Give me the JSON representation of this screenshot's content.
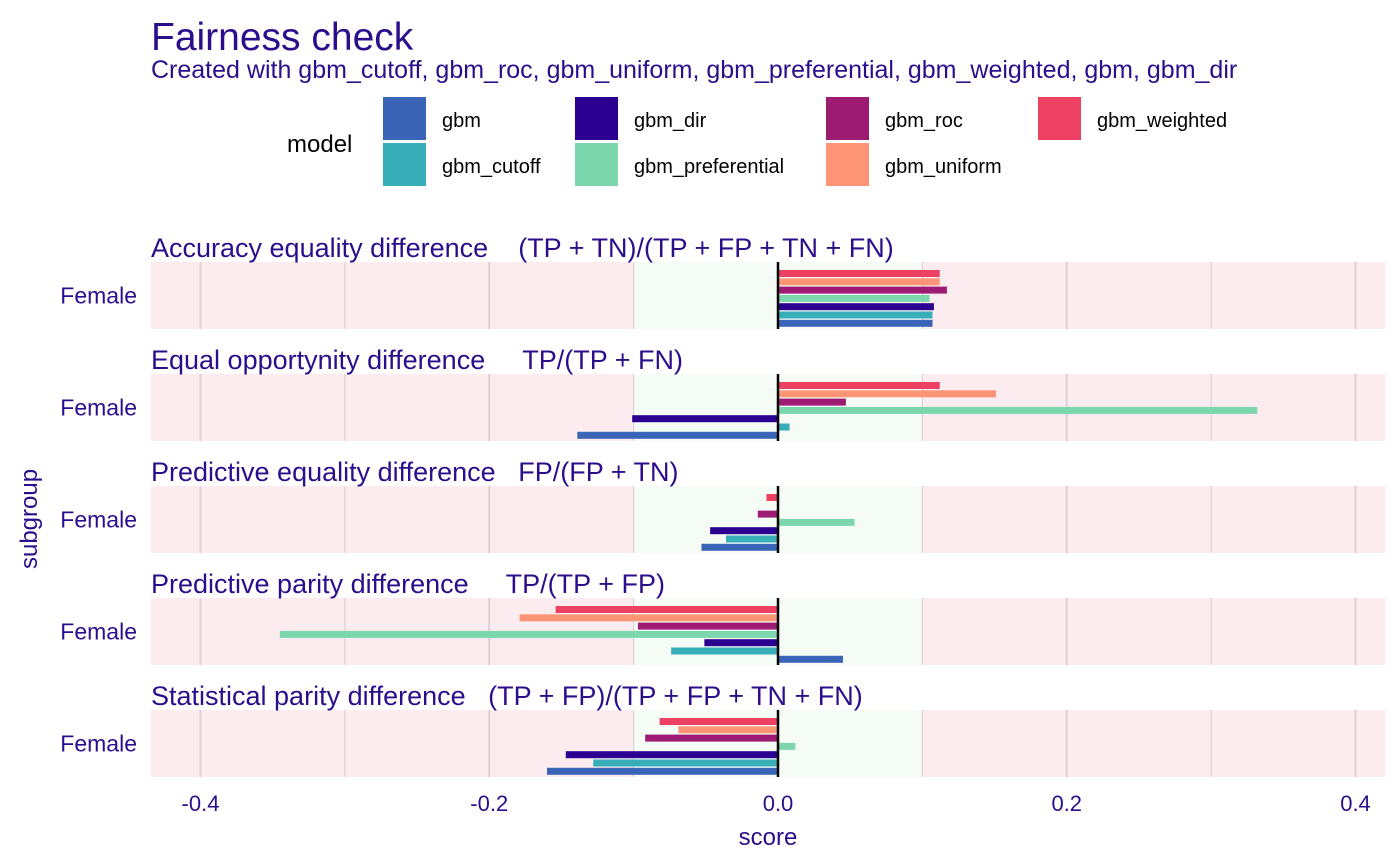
{
  "chart_data": {
    "type": "bar",
    "orientation": "horizontal",
    "title": "Fairness check",
    "subtitle": "Created with gbm_cutoff, gbm_roc, gbm_uniform, gbm_preferential, gbm_weighted, gbm, gbm_dir",
    "xlabel": "score",
    "ylabel": "subgroup",
    "xlim": [
      -0.435,
      0.42
    ],
    "x_ticks": [
      -0.4,
      -0.2,
      0.0,
      0.2,
      0.4
    ],
    "x_tick_labels": [
      "-0.4",
      "-0.2",
      "0.0",
      "0.2",
      "0.4"
    ],
    "fair_region": [
      -0.1,
      0.1
    ],
    "colors": {
      "unfair_background": "#fcebef",
      "fair_background": "#f5fbf5",
      "grid": "#dcd2d7",
      "zero_line": "#000000",
      "text": "#2b0e8c"
    },
    "legend": {
      "title": "model",
      "position": "top",
      "entries": [
        {
          "name": "gbm",
          "color": "#3a64b5"
        },
        {
          "name": "gbm_cutoff",
          "color": "#38aeb8"
        },
        {
          "name": "gbm_dir",
          "color": "#2b0090"
        },
        {
          "name": "gbm_preferential",
          "color": "#7dd7ae"
        },
        {
          "name": "gbm_roc",
          "color": "#9e1b73"
        },
        {
          "name": "gbm_uniform",
          "color": "#fe9476"
        },
        {
          "name": "gbm_weighted",
          "color": "#ec4162"
        }
      ]
    },
    "bar_order_top_to_bottom": [
      "gbm_weighted",
      "gbm_uniform",
      "gbm_roc",
      "gbm_preferential",
      "gbm_dir",
      "gbm_cutoff",
      "gbm"
    ],
    "panels": [
      {
        "title": "Accuracy equality difference    (TP + TN)/(TP + FP + TN + FN)",
        "subgroup": "Female",
        "values": {
          "gbm_weighted": 0.112,
          "gbm_uniform": 0.112,
          "gbm_roc": 0.117,
          "gbm_preferential": 0.105,
          "gbm_dir": 0.108,
          "gbm_cutoff": 0.107,
          "gbm": 0.107
        }
      },
      {
        "title": "Equal opportynity difference     TP/(TP + FN)",
        "subgroup": "Female",
        "values": {
          "gbm_weighted": 0.112,
          "gbm_uniform": 0.151,
          "gbm_roc": 0.047,
          "gbm_preferential": 0.332,
          "gbm_dir": -0.101,
          "gbm_cutoff": 0.008,
          "gbm": -0.139
        }
      },
      {
        "title": "Predictive equality difference   FP/(FP + TN)",
        "subgroup": "Female",
        "values": {
          "gbm_weighted": -0.008,
          "gbm_uniform": 0.0,
          "gbm_roc": -0.014,
          "gbm_preferential": 0.053,
          "gbm_dir": -0.047,
          "gbm_cutoff": -0.036,
          "gbm": -0.053
        }
      },
      {
        "title": "Predictive parity difference     TP/(TP + FP)",
        "subgroup": "Female",
        "values": {
          "gbm_weighted": -0.154,
          "gbm_uniform": -0.179,
          "gbm_roc": -0.097,
          "gbm_preferential": -0.345,
          "gbm_dir": -0.051,
          "gbm_cutoff": -0.074,
          "gbm": 0.045
        }
      },
      {
        "title": "Statistical parity difference   (TP + FP)/(TP + FP + TN + FN)",
        "subgroup": "Female",
        "values": {
          "gbm_weighted": -0.082,
          "gbm_uniform": -0.069,
          "gbm_roc": -0.092,
          "gbm_preferential": 0.012,
          "gbm_dir": -0.147,
          "gbm_cutoff": -0.128,
          "gbm": -0.16
        }
      }
    ]
  }
}
